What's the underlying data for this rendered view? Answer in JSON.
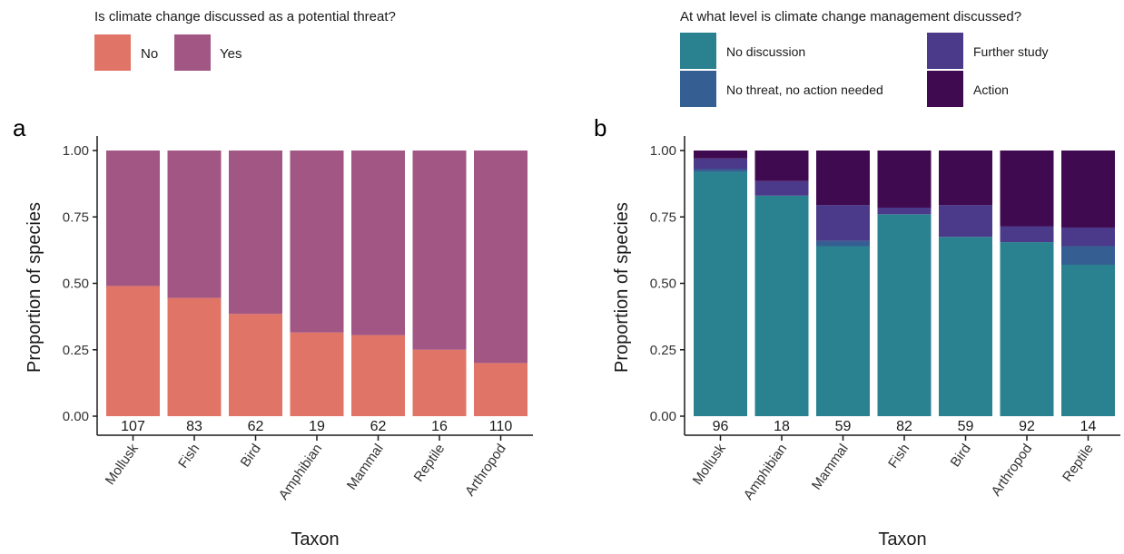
{
  "chart_data": [
    {
      "type": "bar",
      "stacked": true,
      "panel": "a",
      "legend": {
        "title": "Is climate change discussed as a potential threat?",
        "placement": "top-left",
        "entries": [
          {
            "label": "No",
            "color": "#E07466"
          },
          {
            "label": "Yes",
            "color": "#A25683"
          }
        ]
      },
      "categories": [
        "Mollusk",
        "Fish",
        "Bird",
        "Amphibian",
        "Mammal",
        "Reptile",
        "Arthropod"
      ],
      "counts": [
        "107",
        "83",
        "62",
        "19",
        "62",
        "16",
        "110"
      ],
      "series": [
        {
          "name": "No",
          "color": "#E07466",
          "values": [
            0.49,
            0.445,
            0.385,
            0.315,
            0.305,
            0.25,
            0.2
          ]
        },
        {
          "name": "Yes",
          "color": "#A25683",
          "values": [
            0.51,
            0.555,
            0.615,
            0.685,
            0.695,
            0.75,
            0.8
          ]
        }
      ],
      "xlabel": "Taxon",
      "ylabel": "Proportion of species",
      "ylim": [
        0,
        1
      ],
      "yticks": [
        "0.00",
        "0.25",
        "0.50",
        "0.75",
        "1.00"
      ],
      "grid": false
    },
    {
      "type": "bar",
      "stacked": true,
      "panel": "b",
      "legend": {
        "title": "At what level is climate change management discussed?",
        "placement": "top-right",
        "entries": [
          {
            "label": "No discussion",
            "color": "#2A8190"
          },
          {
            "label": "No threat, no action needed",
            "color": "#355F92"
          },
          {
            "label": "Further study",
            "color": "#4B3A8A"
          },
          {
            "label": "Action",
            "color": "#400A50"
          }
        ]
      },
      "categories": [
        "Mollusk",
        "Amphibian",
        "Mammal",
        "Fish",
        "Bird",
        "Arthropod",
        "Reptile"
      ],
      "counts": [
        "96",
        "18",
        "59",
        "82",
        "59",
        "92",
        "14"
      ],
      "series": [
        {
          "name": "No discussion",
          "color": "#2A8190",
          "values": [
            0.92,
            0.83,
            0.64,
            0.76,
            0.675,
            0.655,
            0.57
          ]
        },
        {
          "name": "No threat, no action needed",
          "color": "#355F92",
          "values": [
            0.01,
            0.0,
            0.02,
            0.0,
            0.0,
            0.0,
            0.07
          ]
        },
        {
          "name": "Further study",
          "color": "#4B3A8A",
          "values": [
            0.04,
            0.055,
            0.135,
            0.025,
            0.12,
            0.06,
            0.07
          ]
        },
        {
          "name": "Action",
          "color": "#400A50",
          "values": [
            0.03,
            0.115,
            0.205,
            0.215,
            0.205,
            0.285,
            0.29
          ]
        }
      ],
      "xlabel": "Taxon",
      "ylabel": "Proportion of species",
      "ylim": [
        0,
        1
      ],
      "yticks": [
        "0.00",
        "0.25",
        "0.50",
        "0.75",
        "1.00"
      ],
      "grid": false
    }
  ]
}
